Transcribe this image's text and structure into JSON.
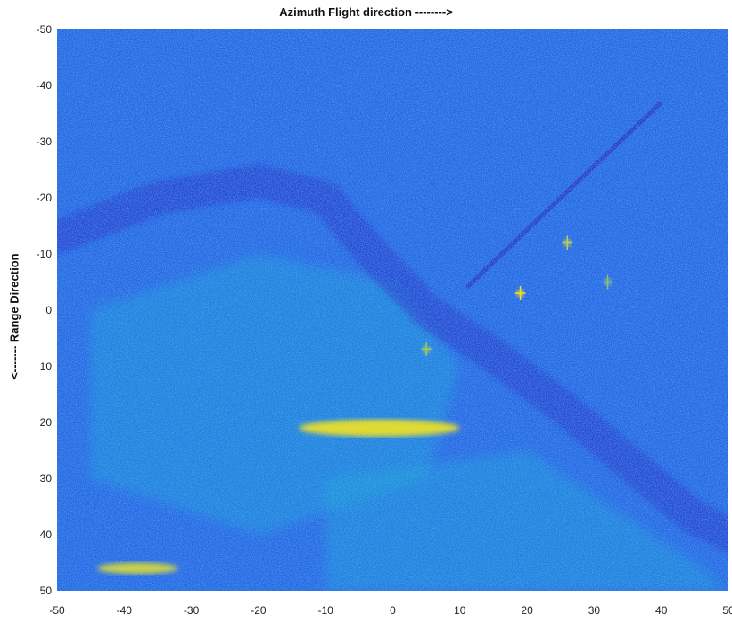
{
  "chart_data": {
    "type": "heatmap",
    "title": "Azimuth Flight direction -------->",
    "xlabel": "",
    "ylabel": "<------- Range Direction",
    "xlim": [
      -50,
      50
    ],
    "ylim": [
      -50,
      50
    ],
    "y_direction": "reversed",
    "x_ticks": [
      "-50",
      "-40",
      "-30",
      "-20",
      "-10",
      "0",
      "10",
      "20",
      "30",
      "40",
      "50"
    ],
    "y_ticks": [
      "-50",
      "-40",
      "-30",
      "-20",
      "-10",
      "0",
      "10",
      "20",
      "30",
      "40",
      "50"
    ],
    "colormap": "parula",
    "colors": {
      "background": "#2a63e6",
      "low": "#2b2fc9",
      "mid": "#1fa0d8",
      "high": "#f6e022"
    },
    "features": [
      {
        "name": "road-curve",
        "type": "dark-band",
        "points": [
          [
            -50,
            -13
          ],
          [
            -35,
            -20
          ],
          [
            -20,
            -23
          ],
          [
            -10,
            -20
          ],
          [
            -3,
            -10
          ],
          [
            5,
            0
          ],
          [
            15,
            8
          ],
          [
            25,
            17
          ],
          [
            35,
            27
          ],
          [
            45,
            37
          ],
          [
            50,
            40
          ]
        ]
      },
      {
        "name": "diagonal-line",
        "type": "dark-line",
        "points": [
          [
            11,
            -4
          ],
          [
            25,
            -20
          ],
          [
            40,
            -37
          ]
        ]
      },
      {
        "name": "bright-streak-center",
        "type": "bright-blob",
        "center": [
          -2,
          21
        ],
        "rx": 12,
        "ry": 1.5,
        "level": 0.95
      },
      {
        "name": "bright-streak-bottom-left",
        "type": "bright-blob",
        "center": [
          -38,
          46
        ],
        "rx": 6,
        "ry": 1,
        "level": 0.9
      },
      {
        "name": "bright-point-1",
        "type": "bright-point",
        "center": [
          19,
          -3
        ],
        "level": 1.0
      },
      {
        "name": "bright-point-2",
        "type": "bright-point",
        "center": [
          26,
          -12
        ],
        "level": 0.85
      },
      {
        "name": "bright-point-3",
        "type": "bright-point",
        "center": [
          32,
          -5
        ],
        "level": 0.75
      },
      {
        "name": "bright-point-4",
        "type": "bright-point",
        "center": [
          5,
          7
        ],
        "level": 0.8
      },
      {
        "name": "bright-area-buildings",
        "type": "bright-region",
        "points": [
          [
            -45,
            0
          ],
          [
            -20,
            -10
          ],
          [
            0,
            -5
          ],
          [
            10,
            10
          ],
          [
            5,
            30
          ],
          [
            -20,
            40
          ],
          [
            -45,
            30
          ]
        ],
        "level": 0.55
      },
      {
        "name": "bright-area-lower-right",
        "type": "bright-region",
        "points": [
          [
            -10,
            30
          ],
          [
            20,
            25
          ],
          [
            45,
            45
          ],
          [
            50,
            50
          ],
          [
            -10,
            50
          ]
        ],
        "level": 0.5
      }
    ]
  }
}
